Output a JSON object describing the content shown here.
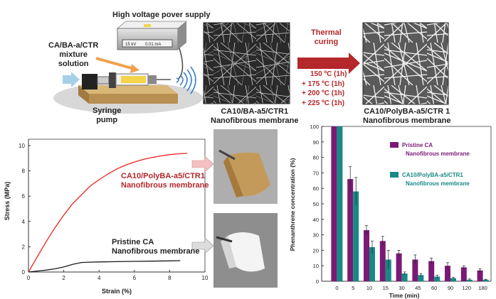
{
  "process": {
    "power_supply_label": "High voltage pover supply",
    "power_readout_kv": "15 kV",
    "power_readout_ma": "0.01 mA",
    "solution_label": [
      "CA/BA-a/CTR",
      "mixture",
      "solution"
    ],
    "pump_label": [
      "Syringe",
      "pump"
    ],
    "membrane1_label": [
      "CA10/BA-a5/CTR1",
      "Nanofibrous membrane"
    ],
    "curing_label": [
      "Thermal",
      "curing"
    ],
    "curing_steps": [
      "150 ºC (1h)",
      "+ 175 ºC (1h)",
      "+ 200 ºC (1h)",
      "+ 225 ºC (1h)"
    ],
    "membrane2_label": [
      "CA10/PolyBA-a5/CTR 1",
      "Nanofibrous membrane"
    ]
  },
  "colors": {
    "red_curve": "#e8231f",
    "black_curve": "#1a1a1a",
    "purple_bar": "#7a1a74",
    "teal_bar": "#168a84",
    "arrow_red": "#b4272a"
  },
  "chart_data": [
    {
      "type": "line",
      "xlabel": "Strain (%)",
      "ylabel": "Stress (MPa)",
      "xlim": [
        0,
        10
      ],
      "ylim": [
        0,
        10.5
      ],
      "xticks": [
        "0",
        "2",
        "4",
        "6",
        "8",
        "10"
      ],
      "yticks": [
        "0",
        "2",
        "4",
        "6",
        "8",
        "10"
      ],
      "series": [
        {
          "name": "CA10/PolyBA-a5/CTR1 Nanofibrous membrane",
          "color": "#e8231f",
          "x": [
            0,
            0.5,
            1,
            1.5,
            2,
            2.5,
            3,
            3.5,
            4,
            4.5,
            5,
            5.5,
            6,
            6.5,
            7,
            7.5,
            8,
            8.5,
            9
          ],
          "y": [
            0,
            1.2,
            2.4,
            3.5,
            4.5,
            5.4,
            6.1,
            6.8,
            7.3,
            7.75,
            8.15,
            8.45,
            8.7,
            8.9,
            9.05,
            9.18,
            9.28,
            9.35,
            9.38
          ]
        },
        {
          "name": "Pristine CA Nanofibrous membrane",
          "color": "#1a1a1a",
          "x": [
            0,
            0.5,
            1,
            1.5,
            2,
            2.5,
            3,
            3.5,
            4,
            5,
            6,
            7,
            8,
            8.6
          ],
          "y": [
            0,
            0.08,
            0.15,
            0.25,
            0.4,
            0.6,
            0.75,
            0.78,
            0.8,
            0.82,
            0.84,
            0.86,
            0.88,
            0.9
          ]
        }
      ]
    },
    {
      "type": "bar",
      "xlabel": "Time (min)",
      "ylabel": "Phenanthrene concentration (%)",
      "ylim": [
        0,
        100
      ],
      "yticks": [
        "0",
        "10",
        "20",
        "30",
        "40",
        "50",
        "60",
        "70",
        "80",
        "90",
        "100"
      ],
      "categories": [
        "0",
        "5",
        "10",
        "15",
        "30",
        "45",
        "60",
        "90",
        "120",
        "180"
      ],
      "series": [
        {
          "name": "Pristine CA Nanofibrous membrane",
          "color": "#7a1a74",
          "values": [
            100,
            66,
            33,
            26,
            18,
            14,
            13,
            10,
            9,
            7
          ],
          "errors": [
            0,
            8,
            3,
            3,
            2,
            3,
            2,
            2,
            1,
            1
          ]
        },
        {
          "name": "CA10/PolyBA-a5/CTR1 Nanofibrous membrane",
          "color": "#168a84",
          "values": [
            100,
            58,
            22,
            14,
            5,
            4,
            3,
            2,
            1,
            1
          ],
          "errors": [
            0,
            9,
            4,
            6,
            1,
            1,
            1,
            0.5,
            0.5,
            0.3
          ]
        }
      ],
      "legend_position": "top-right"
    }
  ]
}
